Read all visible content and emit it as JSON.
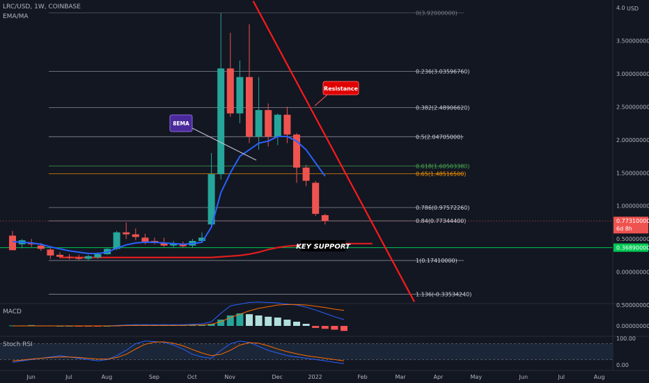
{
  "header": {
    "symbol_line": "LRC/USD, 1W, COINBASE",
    "indicator": "EMA/MA"
  },
  "price_axis": {
    "currency": "USD",
    "ticks": [
      {
        "value": 4.0,
        "label": "4.0"
      },
      {
        "value": 3.5,
        "label": "3.50000000"
      },
      {
        "value": 3.0,
        "label": "3.00000000"
      },
      {
        "value": 2.5,
        "label": "2.50000000"
      },
      {
        "value": 2.0,
        "label": "2.00000000"
      },
      {
        "value": 1.5,
        "label": "1.50000000"
      },
      {
        "value": 1.0,
        "label": "1.00000000"
      },
      {
        "value": 0.5,
        "label": "0.50000000"
      },
      {
        "value": 0.0,
        "label": "0.00000000"
      }
    ],
    "last_price_label": "0.77310000",
    "countdown_label": "6d 8h",
    "support_label": "0.36890000",
    "last_price": 0.7731,
    "support_price": 0.3689
  },
  "time_axis": {
    "labels": [
      {
        "week": 1,
        "label": "Jun"
      },
      {
        "week": 5,
        "label": "Jul"
      },
      {
        "week": 9,
        "label": "Aug"
      },
      {
        "week": 14,
        "label": "Sep"
      },
      {
        "week": 18,
        "label": "Oct"
      },
      {
        "week": 22,
        "label": "Nov"
      },
      {
        "week": 27,
        "label": "Dec"
      },
      {
        "week": 31,
        "label": "2022"
      },
      {
        "week": 36,
        "label": "Feb"
      },
      {
        "week": 40,
        "label": "Mar"
      },
      {
        "week": 44,
        "label": "Apr"
      },
      {
        "week": 48,
        "label": "May"
      },
      {
        "week": 53,
        "label": "Jun"
      },
      {
        "week": 57,
        "label": "Jul"
      },
      {
        "week": 61,
        "label": "Aug"
      }
    ]
  },
  "annotations": {
    "resistance": "Resistance",
    "ema": "8EMA",
    "key_support": "KEY SUPPORT"
  },
  "macd_panel": {
    "label": "MACD",
    "ticks": [
      {
        "value": 0.5,
        "label": "0.50000000"
      },
      {
        "value": 0.0,
        "label": "0.00000000"
      }
    ],
    "histogram": [
      0.01,
      0.01,
      0.02,
      0.01,
      0.01,
      0.0,
      0.0,
      -0.01,
      -0.01,
      -0.01,
      0.0,
      0.01,
      0.02,
      0.02,
      0.02,
      0.02,
      0.02,
      0.02,
      0.02,
      0.02,
      0.03,
      0.05,
      0.15,
      0.25,
      0.3,
      0.28,
      0.25,
      0.22,
      0.2,
      0.15,
      0.1,
      0.05,
      -0.05,
      -0.07,
      -0.09,
      -0.12
    ],
    "macd_line": [
      0.0,
      0.0,
      0.0,
      0.0,
      0.0,
      0.0,
      0.0,
      0.0,
      0.0,
      0.0,
      0.0,
      0.01,
      0.02,
      0.03,
      0.03,
      0.03,
      0.03,
      0.03,
      0.03,
      0.04,
      0.05,
      0.1,
      0.3,
      0.48,
      0.52,
      0.56,
      0.57,
      0.56,
      0.55,
      0.52,
      0.5,
      0.45,
      0.38,
      0.3,
      0.22,
      0.15
    ],
    "signal_line": [
      0.0,
      0.0,
      0.0,
      0.0,
      0.0,
      0.0,
      0.0,
      0.0,
      0.0,
      0.0,
      0.0,
      0.0,
      0.01,
      0.01,
      0.01,
      0.01,
      0.01,
      0.01,
      0.01,
      0.02,
      0.02,
      0.04,
      0.1,
      0.2,
      0.28,
      0.36,
      0.42,
      0.46,
      0.5,
      0.51,
      0.51,
      0.5,
      0.47,
      0.44,
      0.4,
      0.37
    ]
  },
  "stoch_panel": {
    "label": "Stoch RSI",
    "ticks": [
      {
        "value": 100,
        "label": "100.00"
      },
      {
        "value": 0,
        "label": "0.00"
      }
    ],
    "k_line": [
      10,
      15,
      20,
      25,
      30,
      35,
      30,
      25,
      20,
      15,
      20,
      35,
      55,
      80,
      90,
      88,
      85,
      75,
      60,
      40,
      30,
      25,
      55,
      80,
      90,
      85,
      70,
      55,
      45,
      35,
      30,
      25,
      20,
      15,
      10,
      5
    ],
    "d_line": [
      15,
      18,
      22,
      25,
      28,
      30,
      30,
      28,
      25,
      22,
      22,
      28,
      40,
      60,
      78,
      86,
      87,
      82,
      72,
      58,
      45,
      35,
      40,
      55,
      75,
      84,
      82,
      72,
      60,
      50,
      42,
      35,
      30,
      25,
      20,
      15
    ]
  },
  "chart_data": {
    "type": "candlestick",
    "title": "LRC/USD, 1W, COINBASE",
    "ylabel": "USD",
    "ylim": [
      -0.45,
      4.0
    ],
    "x_unit": "week index (week 1 = first June week of 2021)",
    "candles": [
      {
        "w": 0,
        "o": 0.55,
        "h": 0.62,
        "l": 0.35,
        "c": 0.33
      },
      {
        "w": 1,
        "o": 0.42,
        "h": 0.5,
        "l": 0.36,
        "c": 0.48
      },
      {
        "w": 2,
        "o": 0.44,
        "h": 0.5,
        "l": 0.38,
        "c": 0.42
      },
      {
        "w": 3,
        "o": 0.4,
        "h": 0.44,
        "l": 0.32,
        "c": 0.35
      },
      {
        "w": 4,
        "o": 0.34,
        "h": 0.38,
        "l": 0.2,
        "c": 0.25
      },
      {
        "w": 5,
        "o": 0.26,
        "h": 0.3,
        "l": 0.21,
        "c": 0.23
      },
      {
        "w": 6,
        "o": 0.23,
        "h": 0.27,
        "l": 0.19,
        "c": 0.22
      },
      {
        "w": 7,
        "o": 0.22,
        "h": 0.26,
        "l": 0.18,
        "c": 0.2
      },
      {
        "w": 8,
        "o": 0.2,
        "h": 0.26,
        "l": 0.17,
        "c": 0.24
      },
      {
        "w": 9,
        "o": 0.22,
        "h": 0.3,
        "l": 0.2,
        "c": 0.27
      },
      {
        "w": 10,
        "o": 0.27,
        "h": 0.36,
        "l": 0.26,
        "c": 0.35
      },
      {
        "w": 11,
        "o": 0.35,
        "h": 0.62,
        "l": 0.33,
        "c": 0.6
      },
      {
        "w": 12,
        "o": 0.6,
        "h": 0.75,
        "l": 0.5,
        "c": 0.57
      },
      {
        "w": 13,
        "o": 0.57,
        "h": 0.66,
        "l": 0.48,
        "c": 0.53
      },
      {
        "w": 14,
        "o": 0.52,
        "h": 0.58,
        "l": 0.42,
        "c": 0.46
      },
      {
        "w": 15,
        "o": 0.47,
        "h": 0.52,
        "l": 0.42,
        "c": 0.44
      },
      {
        "w": 16,
        "o": 0.44,
        "h": 0.52,
        "l": 0.38,
        "c": 0.4
      },
      {
        "w": 17,
        "o": 0.4,
        "h": 0.47,
        "l": 0.36,
        "c": 0.43
      },
      {
        "w": 18,
        "o": 0.42,
        "h": 0.46,
        "l": 0.37,
        "c": 0.39
      },
      {
        "w": 19,
        "o": 0.4,
        "h": 0.5,
        "l": 0.37,
        "c": 0.47
      },
      {
        "w": 20,
        "o": 0.47,
        "h": 0.6,
        "l": 0.45,
        "c": 0.52
      },
      {
        "w": 21,
        "o": 0.72,
        "h": 1.8,
        "l": 0.68,
        "c": 1.48
      },
      {
        "w": 22,
        "o": 1.48,
        "h": 3.92,
        "l": 1.4,
        "c": 3.08
      },
      {
        "w": 23,
        "o": 3.08,
        "h": 3.62,
        "l": 2.35,
        "c": 2.4
      },
      {
        "w": 24,
        "o": 2.4,
        "h": 3.2,
        "l": 2.25,
        "c": 2.95
      },
      {
        "w": 25,
        "o": 2.95,
        "h": 3.75,
        "l": 1.95,
        "c": 2.05
      },
      {
        "w": 26,
        "o": 2.05,
        "h": 2.95,
        "l": 1.85,
        "c": 2.45
      },
      {
        "w": 27,
        "o": 2.45,
        "h": 2.55,
        "l": 1.9,
        "c": 2.05
      },
      {
        "w": 28,
        "o": 2.05,
        "h": 2.4,
        "l": 1.92,
        "c": 2.38
      },
      {
        "w": 29,
        "o": 2.38,
        "h": 2.5,
        "l": 1.95,
        "c": 2.08
      },
      {
        "w": 30,
        "o": 2.08,
        "h": 2.1,
        "l": 1.35,
        "c": 1.58
      },
      {
        "w": 31,
        "o": 1.58,
        "h": 1.62,
        "l": 1.3,
        "c": 1.38
      },
      {
        "w": 32,
        "o": 1.35,
        "h": 1.38,
        "l": 0.85,
        "c": 0.88
      },
      {
        "w": 33,
        "o": 0.86,
        "h": 0.88,
        "l": 0.72,
        "c": 0.77
      }
    ],
    "ema8": [
      0.46,
      0.45,
      0.44,
      0.42,
      0.38,
      0.35,
      0.32,
      0.3,
      0.28,
      0.28,
      0.3,
      0.36,
      0.41,
      0.44,
      0.45,
      0.45,
      0.44,
      0.43,
      0.42,
      0.43,
      0.45,
      0.68,
      1.2,
      1.5,
      1.75,
      1.85,
      1.95,
      1.98,
      2.05,
      2.05,
      1.98,
      1.85,
      1.65,
      1.45
    ],
    "ma_long": [
      0.22,
      0.22,
      0.22,
      0.22,
      0.22,
      0.22,
      0.22,
      0.22,
      0.22,
      0.22,
      0.22,
      0.22,
      0.22,
      0.22,
      0.22,
      0.22,
      0.22,
      0.23,
      0.24,
      0.25,
      0.27,
      0.3,
      0.34,
      0.37,
      0.39,
      0.4,
      0.41,
      0.42,
      0.42,
      0.43,
      0.43,
      0.43,
      0.43,
      0.43
    ],
    "fib_levels": [
      {
        "ratio": "0",
        "price": 3.92,
        "label": "0(3.92000000)"
      },
      {
        "ratio": "0.236",
        "price": 3.0359676,
        "label": "0.236(3.03596760)"
      },
      {
        "ratio": "0.382",
        "price": 2.4890662,
        "label": "0.382(2.48906620)"
      },
      {
        "ratio": "0.5",
        "price": 2.04705,
        "label": "0.5(2.04705000)"
      },
      {
        "ratio": "0.618",
        "price": 1.6050338,
        "label": "0.618(1.60503380)"
      },
      {
        "ratio": "0.65",
        "price": 1.485165,
        "label": "0.65(1.48516500)"
      },
      {
        "ratio": "0.786",
        "price": 0.9757226,
        "label": "0.786(0.97572260)"
      },
      {
        "ratio": "0.84",
        "price": 0.773444,
        "label": "0.84(0.77344400)"
      },
      {
        "ratio": "1",
        "price": 0.1741,
        "label": "1(0.17410000)"
      },
      {
        "ratio": "1.136",
        "price": -0.3353424,
        "label": "1.136(-0.33534240)"
      }
    ],
    "resistance_line": {
      "from": {
        "w": 21,
        "price": 4.1
      },
      "to": {
        "w": 40,
        "price": -0.45
      }
    },
    "support_line_price": 0.3689,
    "colors": {
      "up": "#26a69a",
      "down": "#ef5350",
      "ema": "#2962ff",
      "ma": "#e01e1e",
      "resistance": "#ff1a1a",
      "fib": "#9598a1",
      "fib_618": "#4caf50",
      "fib_65": "#ff9800",
      "support": "#00c853",
      "macd": "#2962ff",
      "signal": "#ff6d00",
      "stoch_k": "#2962ff",
      "stoch_d": "#ff6d00"
    }
  }
}
